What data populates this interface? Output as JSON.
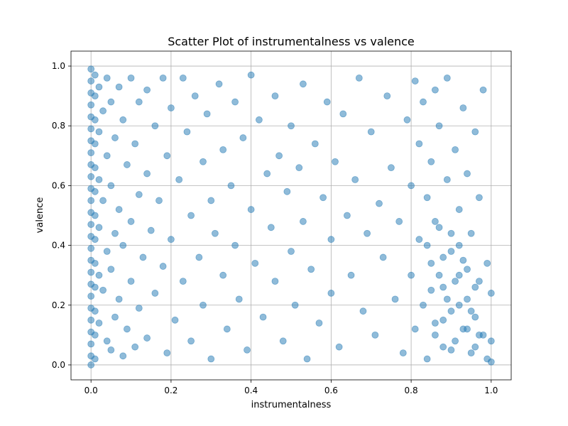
{
  "chart_data": {
    "type": "scatter",
    "title": "Scatter Plot of instrumentalness vs valence",
    "xlabel": "instrumentalness",
    "ylabel": "valence",
    "xlim": [
      -0.05,
      1.05
    ],
    "ylim": [
      -0.05,
      1.05
    ],
    "xticks": [
      0.0,
      0.2,
      0.4,
      0.6,
      0.8,
      1.0
    ],
    "yticks": [
      0.0,
      0.2,
      0.4,
      0.6,
      0.8,
      1.0
    ],
    "xtick_labels": [
      "0.0",
      "0.2",
      "0.4",
      "0.6",
      "0.8",
      "1.0"
    ],
    "ytick_labels": [
      "0.0",
      "0.2",
      "0.4",
      "0.6",
      "0.8",
      "1.0"
    ],
    "grid": true,
    "series": [
      {
        "color": "#1f77b4",
        "alpha": 0.5,
        "points": [
          [
            0.0,
            0.99
          ],
          [
            0.0,
            0.95
          ],
          [
            0.0,
            0.91
          ],
          [
            0.0,
            0.87
          ],
          [
            0.0,
            0.83
          ],
          [
            0.0,
            0.79
          ],
          [
            0.0,
            0.75
          ],
          [
            0.0,
            0.71
          ],
          [
            0.0,
            0.67
          ],
          [
            0.0,
            0.63
          ],
          [
            0.0,
            0.59
          ],
          [
            0.0,
            0.55
          ],
          [
            0.0,
            0.51
          ],
          [
            0.0,
            0.47
          ],
          [
            0.0,
            0.43
          ],
          [
            0.0,
            0.39
          ],
          [
            0.0,
            0.35
          ],
          [
            0.0,
            0.31
          ],
          [
            0.0,
            0.27
          ],
          [
            0.0,
            0.23
          ],
          [
            0.0,
            0.19
          ],
          [
            0.0,
            0.15
          ],
          [
            0.0,
            0.11
          ],
          [
            0.0,
            0.07
          ],
          [
            0.0,
            0.03
          ],
          [
            0.0,
            0.0
          ],
          [
            0.01,
            0.97
          ],
          [
            0.01,
            0.9
          ],
          [
            0.01,
            0.82
          ],
          [
            0.01,
            0.74
          ],
          [
            0.01,
            0.66
          ],
          [
            0.01,
            0.58
          ],
          [
            0.01,
            0.5
          ],
          [
            0.01,
            0.42
          ],
          [
            0.01,
            0.34
          ],
          [
            0.01,
            0.26
          ],
          [
            0.01,
            0.18
          ],
          [
            0.01,
            0.1
          ],
          [
            0.01,
            0.02
          ],
          [
            0.02,
            0.93
          ],
          [
            0.02,
            0.78
          ],
          [
            0.02,
            0.62
          ],
          [
            0.02,
            0.46
          ],
          [
            0.02,
            0.3
          ],
          [
            0.02,
            0.14
          ],
          [
            0.03,
            0.85
          ],
          [
            0.03,
            0.55
          ],
          [
            0.03,
            0.25
          ],
          [
            0.04,
            0.96
          ],
          [
            0.04,
            0.7
          ],
          [
            0.04,
            0.38
          ],
          [
            0.04,
            0.08
          ],
          [
            0.05,
            0.88
          ],
          [
            0.05,
            0.6
          ],
          [
            0.05,
            0.32
          ],
          [
            0.05,
            0.05
          ],
          [
            0.06,
            0.76
          ],
          [
            0.06,
            0.44
          ],
          [
            0.06,
            0.16
          ],
          [
            0.07,
            0.93
          ],
          [
            0.07,
            0.52
          ],
          [
            0.07,
            0.22
          ],
          [
            0.08,
            0.82
          ],
          [
            0.08,
            0.4
          ],
          [
            0.08,
            0.03
          ],
          [
            0.09,
            0.67
          ],
          [
            0.09,
            0.12
          ],
          [
            0.1,
            0.96
          ],
          [
            0.1,
            0.48
          ],
          [
            0.1,
            0.28
          ],
          [
            0.11,
            0.74
          ],
          [
            0.11,
            0.06
          ],
          [
            0.12,
            0.88
          ],
          [
            0.12,
            0.57
          ],
          [
            0.12,
            0.19
          ],
          [
            0.13,
            0.36
          ],
          [
            0.14,
            0.92
          ],
          [
            0.14,
            0.64
          ],
          [
            0.14,
            0.09
          ],
          [
            0.15,
            0.45
          ],
          [
            0.16,
            0.8
          ],
          [
            0.16,
            0.24
          ],
          [
            0.17,
            0.55
          ],
          [
            0.18,
            0.96
          ],
          [
            0.18,
            0.33
          ],
          [
            0.19,
            0.7
          ],
          [
            0.19,
            0.04
          ],
          [
            0.2,
            0.86
          ],
          [
            0.2,
            0.42
          ],
          [
            0.21,
            0.15
          ],
          [
            0.22,
            0.62
          ],
          [
            0.23,
            0.96
          ],
          [
            0.23,
            0.28
          ],
          [
            0.24,
            0.78
          ],
          [
            0.25,
            0.5
          ],
          [
            0.25,
            0.08
          ],
          [
            0.26,
            0.9
          ],
          [
            0.27,
            0.36
          ],
          [
            0.28,
            0.68
          ],
          [
            0.28,
            0.2
          ],
          [
            0.29,
            0.84
          ],
          [
            0.3,
            0.55
          ],
          [
            0.3,
            0.02
          ],
          [
            0.31,
            0.44
          ],
          [
            0.32,
            0.94
          ],
          [
            0.33,
            0.3
          ],
          [
            0.33,
            0.72
          ],
          [
            0.34,
            0.12
          ],
          [
            0.35,
            0.6
          ],
          [
            0.36,
            0.88
          ],
          [
            0.36,
            0.4
          ],
          [
            0.37,
            0.22
          ],
          [
            0.38,
            0.76
          ],
          [
            0.39,
            0.05
          ],
          [
            0.4,
            0.52
          ],
          [
            0.4,
            0.97
          ],
          [
            0.41,
            0.34
          ],
          [
            0.42,
            0.82
          ],
          [
            0.43,
            0.16
          ],
          [
            0.44,
            0.64
          ],
          [
            0.45,
            0.46
          ],
          [
            0.46,
            0.9
          ],
          [
            0.46,
            0.28
          ],
          [
            0.47,
            0.7
          ],
          [
            0.48,
            0.08
          ],
          [
            0.49,
            0.58
          ],
          [
            0.5,
            0.38
          ],
          [
            0.5,
            0.8
          ],
          [
            0.51,
            0.2
          ],
          [
            0.52,
            0.66
          ],
          [
            0.53,
            0.94
          ],
          [
            0.53,
            0.48
          ],
          [
            0.54,
            0.02
          ],
          [
            0.55,
            0.32
          ],
          [
            0.56,
            0.74
          ],
          [
            0.57,
            0.14
          ],
          [
            0.58,
            0.56
          ],
          [
            0.59,
            0.88
          ],
          [
            0.6,
            0.42
          ],
          [
            0.6,
            0.24
          ],
          [
            0.61,
            0.68
          ],
          [
            0.62,
            0.06
          ],
          [
            0.63,
            0.84
          ],
          [
            0.64,
            0.5
          ],
          [
            0.65,
            0.3
          ],
          [
            0.66,
            0.62
          ],
          [
            0.67,
            0.96
          ],
          [
            0.68,
            0.18
          ],
          [
            0.69,
            0.44
          ],
          [
            0.7,
            0.78
          ],
          [
            0.71,
            0.1
          ],
          [
            0.72,
            0.54
          ],
          [
            0.73,
            0.36
          ],
          [
            0.74,
            0.9
          ],
          [
            0.75,
            0.66
          ],
          [
            0.76,
            0.22
          ],
          [
            0.77,
            0.48
          ],
          [
            0.78,
            0.04
          ],
          [
            0.79,
            0.82
          ],
          [
            0.8,
            0.6
          ],
          [
            0.8,
            0.3
          ],
          [
            0.81,
            0.95
          ],
          [
            0.81,
            0.12
          ],
          [
            0.82,
            0.74
          ],
          [
            0.82,
            0.42
          ],
          [
            0.83,
            0.88
          ],
          [
            0.83,
            0.2
          ],
          [
            0.84,
            0.56
          ],
          [
            0.84,
            0.02
          ],
          [
            0.85,
            0.68
          ],
          [
            0.85,
            0.34
          ],
          [
            0.86,
            0.92
          ],
          [
            0.86,
            0.14
          ],
          [
            0.87,
            0.8
          ],
          [
            0.87,
            0.46
          ],
          [
            0.88,
            0.26
          ],
          [
            0.88,
            0.06
          ],
          [
            0.89,
            0.62
          ],
          [
            0.89,
            0.96
          ],
          [
            0.9,
            0.38
          ],
          [
            0.9,
            0.18
          ],
          [
            0.91,
            0.72
          ],
          [
            0.91,
            0.08
          ],
          [
            0.92,
            0.52
          ],
          [
            0.92,
            0.3
          ],
          [
            0.93,
            0.86
          ],
          [
            0.93,
            0.12
          ],
          [
            0.94,
            0.64
          ],
          [
            0.94,
            0.22
          ],
          [
            0.95,
            0.44
          ],
          [
            0.95,
            0.04
          ],
          [
            0.96,
            0.78
          ],
          [
            0.96,
            0.16
          ],
          [
            0.97,
            0.56
          ],
          [
            0.97,
            0.28
          ],
          [
            0.98,
            0.92
          ],
          [
            0.98,
            0.1
          ],
          [
            0.99,
            0.34
          ],
          [
            0.99,
            0.02
          ],
          [
            1.0,
            0.24
          ],
          [
            1.0,
            0.08
          ],
          [
            1.0,
            0.01
          ],
          [
            0.86,
            0.1
          ],
          [
            0.88,
            0.15
          ],
          [
            0.9,
            0.05
          ],
          [
            0.92,
            0.2
          ],
          [
            0.94,
            0.12
          ],
          [
            0.96,
            0.06
          ],
          [
            0.85,
            0.25
          ],
          [
            0.87,
            0.3
          ],
          [
            0.89,
            0.22
          ],
          [
            0.91,
            0.28
          ],
          [
            0.93,
            0.35
          ],
          [
            0.95,
            0.18
          ],
          [
            0.97,
            0.1
          ],
          [
            0.84,
            0.4
          ],
          [
            0.86,
            0.48
          ],
          [
            0.88,
            0.36
          ],
          [
            0.9,
            0.44
          ],
          [
            0.92,
            0.4
          ],
          [
            0.94,
            0.32
          ],
          [
            0.96,
            0.26
          ]
        ]
      }
    ]
  }
}
